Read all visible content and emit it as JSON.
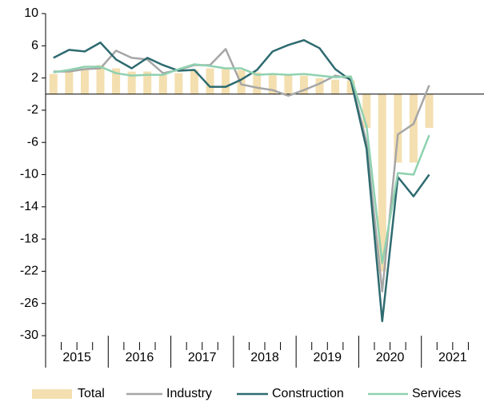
{
  "chart_data": {
    "type": "bar",
    "groups": [
      "2015",
      "2016",
      "2017",
      "2018",
      "2019",
      "2020",
      "2021"
    ],
    "categories": [
      null,
      null,
      null,
      null,
      null,
      null,
      null,
      null,
      null,
      null,
      null,
      null,
      null,
      null,
      null,
      null,
      null,
      null,
      null,
      null,
      null,
      null,
      null,
      null,
      null,
      null,
      null,
      null
    ],
    "series": [
      {
        "name": "Total",
        "type": "bar",
        "color": "#f3dfb0",
        "values": [
          2.5,
          2.8,
          3.2,
          3.6,
          3.2,
          2.8,
          2.8,
          2.4,
          2.6,
          3.0,
          3.2,
          3.2,
          3.0,
          2.7,
          2.5,
          2.4,
          2.3,
          2.0,
          1.8,
          1.7,
          -4.2,
          -22.0,
          -8.5,
          -8.5,
          -4.2,
          null,
          null,
          null
        ]
      },
      {
        "name": "Industry",
        "type": "line",
        "color": "#a6a6a6",
        "values": [
          2.8,
          2.8,
          3.1,
          3.2,
          5.4,
          4.5,
          4.3,
          2.6,
          3.0,
          3.6,
          3.6,
          5.6,
          1.2,
          0.8,
          0.5,
          -0.2,
          0.5,
          1.3,
          2.3,
          1.9,
          -6.0,
          -24.5,
          -5.0,
          -3.7,
          1.1,
          null,
          null,
          null
        ]
      },
      {
        "name": "Construction",
        "type": "line",
        "color": "#2e6b70",
        "values": [
          4.5,
          5.5,
          5.3,
          6.4,
          4.3,
          3.2,
          4.5,
          3.6,
          2.9,
          3.0,
          0.9,
          0.9,
          1.8,
          3.0,
          5.3,
          6.1,
          6.7,
          5.7,
          3.1,
          1.7,
          -6.8,
          -28.2,
          -10.3,
          -12.7,
          -10.0,
          null,
          null,
          null
        ]
      },
      {
        "name": "Services",
        "type": "line",
        "color": "#8fd1b0",
        "values": [
          2.7,
          3.0,
          3.4,
          3.4,
          2.6,
          2.3,
          2.4,
          2.4,
          3.1,
          3.7,
          3.5,
          3.2,
          3.2,
          2.4,
          2.5,
          2.4,
          2.5,
          2.3,
          2.1,
          2.2,
          -4.0,
          -21.0,
          -9.8,
          -10.0,
          -5.1,
          null,
          null,
          null
        ]
      }
    ],
    "ylim": [
      -30,
      10
    ],
    "yticks": [
      10,
      6,
      2,
      -2,
      -6,
      -10,
      -14,
      -18,
      -22,
      -26,
      -30
    ],
    "grid": false,
    "legend": "bottom"
  }
}
